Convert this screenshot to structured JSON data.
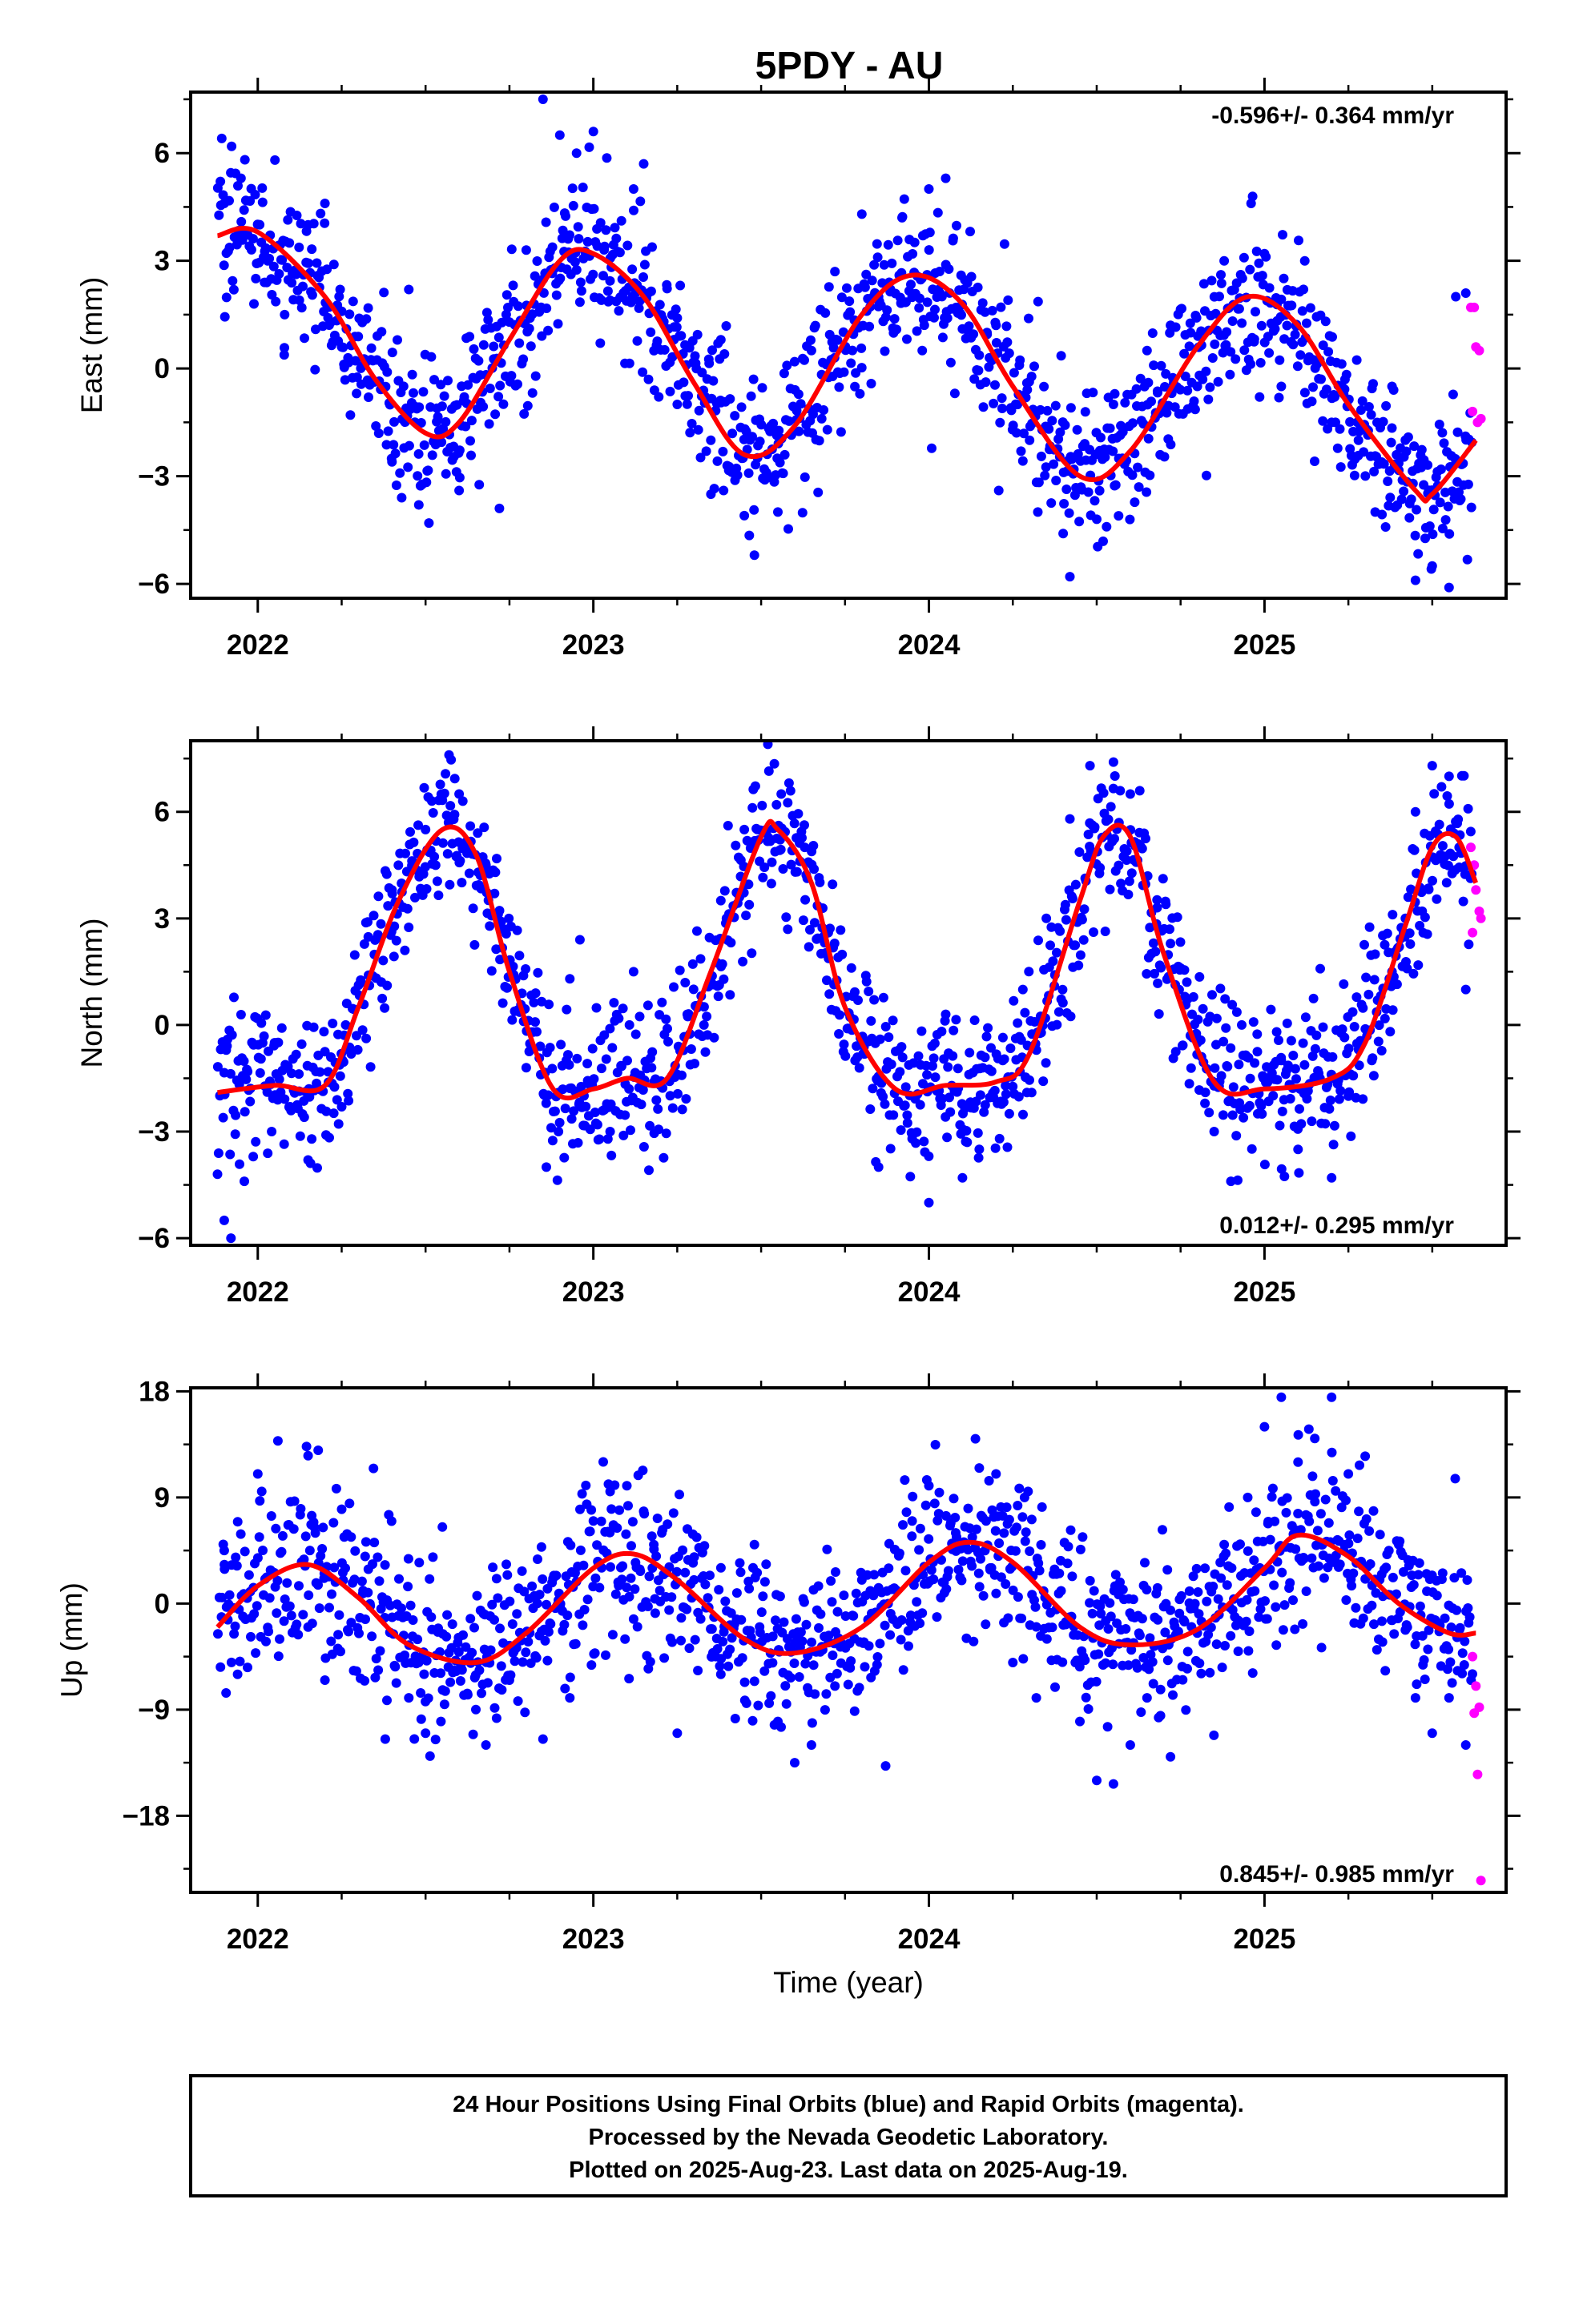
{
  "title": "5PDY - AU",
  "colors": {
    "final": "#0000ff",
    "rapid": "#ff00ff",
    "model": "#ff0000",
    "frame": "#000000"
  },
  "footer": {
    "lines": [
      "24 Hour Positions Using Final Orbits (blue) and Rapid Orbits (magenta).",
      "Processed by the Nevada Geodetic Laboratory.",
      "Plotted on 2025-Aug-23. Last data on 2025-Aug-19."
    ]
  },
  "chart_data": [
    {
      "type": "scatter",
      "component": "East",
      "ylabel": "East (mm)",
      "xlabel": "",
      "xlim": [
        2021.8,
        2025.72
      ],
      "ylim": [
        -6.4,
        7.7
      ],
      "xticks": [
        2022,
        2023,
        2024,
        2025
      ],
      "yticks": [
        -6,
        -3,
        0,
        3,
        6
      ],
      "rate_label": "-0.596+/- 0.364 mm/yr",
      "rate_position": "top-right",
      "data_start": 2021.88,
      "data_end": 2025.63,
      "model": {
        "x": [
          2021.88,
          2022.0,
          2022.2,
          2022.35,
          2022.5,
          2022.6,
          2022.75,
          2022.9,
          2023.0,
          2023.15,
          2023.3,
          2023.45,
          2023.6,
          2023.8,
          2023.95,
          2024.1,
          2024.25,
          2024.45,
          2024.6,
          2024.8,
          2024.95,
          2025.1,
          2025.25,
          2025.45,
          2025.5,
          2025.63
        ],
        "y": [
          3.7,
          3.8,
          2.0,
          -0.3,
          -1.8,
          -1.5,
          0.8,
          3.0,
          3.2,
          2.0,
          -0.4,
          -2.4,
          -1.6,
          1.5,
          2.6,
          1.8,
          -0.5,
          -3.0,
          -2.3,
          0.6,
          2.0,
          1.2,
          -1.0,
          -3.4,
          -3.5,
          -2.0
        ]
      },
      "final_points": [
        {
          "x": 2021.9,
          "y": 4.6
        },
        {
          "x": 2021.95,
          "y": 5.3
        },
        {
          "x": 2022.02,
          "y": 2.4
        },
        {
          "x": 2022.08,
          "y": 1.5
        },
        {
          "x": 2022.15,
          "y": 4.0
        },
        {
          "x": 2022.2,
          "y": 4.6
        },
        {
          "x": 2022.25,
          "y": 0.6
        },
        {
          "x": 2022.33,
          "y": -0.8
        },
        {
          "x": 2022.4,
          "y": -2.6
        },
        {
          "x": 2022.45,
          "y": 2.2
        },
        {
          "x": 2022.48,
          "y": -3.8
        },
        {
          "x": 2022.6,
          "y": -3.4
        },
        {
          "x": 2022.72,
          "y": -3.9
        },
        {
          "x": 2022.8,
          "y": 3.3
        },
        {
          "x": 2022.85,
          "y": 7.5
        },
        {
          "x": 2022.9,
          "y": 6.5
        },
        {
          "x": 2022.95,
          "y": 6.0
        },
        {
          "x": 2023.0,
          "y": 6.6
        },
        {
          "x": 2023.05,
          "y": 1.9
        },
        {
          "x": 2023.12,
          "y": 5.0
        },
        {
          "x": 2023.15,
          "y": 5.7
        },
        {
          "x": 2023.25,
          "y": -1.0
        },
        {
          "x": 2023.35,
          "y": -2.0
        },
        {
          "x": 2023.38,
          "y": 0.8
        },
        {
          "x": 2023.45,
          "y": -4.1
        },
        {
          "x": 2023.48,
          "y": -5.2
        },
        {
          "x": 2023.55,
          "y": -4.0
        },
        {
          "x": 2023.65,
          "y": 0.5
        },
        {
          "x": 2023.72,
          "y": 2.7
        },
        {
          "x": 2023.8,
          "y": 4.3
        },
        {
          "x": 2023.85,
          "y": 2.0
        },
        {
          "x": 2023.92,
          "y": 4.2
        },
        {
          "x": 2023.98,
          "y": 0.5
        },
        {
          "x": 2024.0,
          "y": 5.0
        },
        {
          "x": 2024.05,
          "y": 5.3
        },
        {
          "x": 2024.1,
          "y": 1.1
        },
        {
          "x": 2024.2,
          "y": 1.2
        },
        {
          "x": 2024.3,
          "y": -2.0
        },
        {
          "x": 2024.4,
          "y": -4.6
        },
        {
          "x": 2024.42,
          "y": -5.8
        },
        {
          "x": 2024.5,
          "y": -4.2
        },
        {
          "x": 2024.55,
          "y": -1.0
        },
        {
          "x": 2024.65,
          "y": 0.5
        },
        {
          "x": 2024.72,
          "y": 1.2
        },
        {
          "x": 2024.8,
          "y": -0.5
        },
        {
          "x": 2024.88,
          "y": 3.0
        },
        {
          "x": 2024.96,
          "y": 4.6
        },
        {
          "x": 2025.0,
          "y": 3.2
        },
        {
          "x": 2025.05,
          "y": -0.5
        },
        {
          "x": 2025.12,
          "y": 3.0
        },
        {
          "x": 2025.2,
          "y": -1.5
        },
        {
          "x": 2025.28,
          "y": -2.0
        },
        {
          "x": 2025.33,
          "y": -4.0
        },
        {
          "x": 2025.38,
          "y": -0.5
        },
        {
          "x": 2025.45,
          "y": -5.9
        },
        {
          "x": 2025.5,
          "y": -5.5
        },
        {
          "x": 2025.55,
          "y": -6.1
        },
        {
          "x": 2025.57,
          "y": 2.0
        },
        {
          "x": 2025.6,
          "y": 2.1
        }
      ],
      "rapid_points": [
        {
          "x": 2025.615,
          "y": 1.7
        },
        {
          "x": 2025.625,
          "y": 1.7
        },
        {
          "x": 2025.63,
          "y": 0.6
        },
        {
          "x": 2025.64,
          "y": 0.5
        },
        {
          "x": 2025.62,
          "y": -1.2
        },
        {
          "x": 2025.635,
          "y": -1.5
        },
        {
          "x": 2025.645,
          "y": -1.4
        }
      ]
    },
    {
      "type": "scatter",
      "component": "North",
      "ylabel": "North (mm)",
      "xlabel": "",
      "xlim": [
        2021.8,
        2025.72
      ],
      "ylim": [
        -6.2,
        8.0
      ],
      "xticks": [
        2022,
        2023,
        2024,
        2025
      ],
      "yticks": [
        -6,
        -3,
        0,
        3,
        6
      ],
      "rate_label": "0.012+/- 0.295 mm/yr",
      "rate_position": "bottom-right",
      "data_start": 2021.88,
      "data_end": 2025.63,
      "model": {
        "x": [
          2021.88,
          2022.05,
          2022.2,
          2022.3,
          2022.42,
          2022.55,
          2022.65,
          2022.75,
          2022.88,
          2023.0,
          2023.1,
          2023.22,
          2023.35,
          2023.5,
          2023.55,
          2023.65,
          2023.75,
          2023.9,
          2024.05,
          2024.2,
          2024.3,
          2024.45,
          2024.52,
          2024.6,
          2024.7,
          2024.85,
          2025.0,
          2025.2,
          2025.3,
          2025.42,
          2025.5,
          2025.57,
          2025.63
        ],
        "y": [
          -1.9,
          -1.7,
          -1.7,
          0.5,
          3.5,
          5.5,
          4.8,
          1.5,
          -1.8,
          -1.8,
          -1.5,
          -1.5,
          1.5,
          5.3,
          5.5,
          4.0,
          0.5,
          -1.8,
          -1.7,
          -1.6,
          -0.8,
          3.5,
          5.3,
          5.3,
          2.0,
          -1.6,
          -1.8,
          -1.5,
          -0.5,
          2.8,
          5.0,
          5.3,
          4.0
        ]
      },
      "final_points": [
        {
          "x": 2021.88,
          "y": -4.2
        },
        {
          "x": 2021.9,
          "y": -5.5
        },
        {
          "x": 2021.92,
          "y": -6.0
        },
        {
          "x": 2021.96,
          "y": -4.4
        },
        {
          "x": 2022.05,
          "y": -0.5
        },
        {
          "x": 2022.15,
          "y": -3.8
        },
        {
          "x": 2022.25,
          "y": -2.3
        },
        {
          "x": 2022.33,
          "y": 1.4
        },
        {
          "x": 2022.4,
          "y": 3.8
        },
        {
          "x": 2022.5,
          "y": 5.5
        },
        {
          "x": 2022.57,
          "y": 7.6
        },
        {
          "x": 2022.6,
          "y": 6.5
        },
        {
          "x": 2022.68,
          "y": 4.5
        },
        {
          "x": 2022.73,
          "y": 2.7
        },
        {
          "x": 2022.8,
          "y": -1.2
        },
        {
          "x": 2022.86,
          "y": -4.0
        },
        {
          "x": 2022.93,
          "y": 1.3
        },
        {
          "x": 2022.96,
          "y": 2.4
        },
        {
          "x": 2023.05,
          "y": -3.0
        },
        {
          "x": 2023.12,
          "y": 1.5
        },
        {
          "x": 2023.2,
          "y": -1.7
        },
        {
          "x": 2023.28,
          "y": 0.3
        },
        {
          "x": 2023.38,
          "y": 3.5
        },
        {
          "x": 2023.45,
          "y": 5.5
        },
        {
          "x": 2023.52,
          "y": 7.9
        },
        {
          "x": 2023.56,
          "y": 6.5
        },
        {
          "x": 2023.63,
          "y": 5.0
        },
        {
          "x": 2023.7,
          "y": 2.6
        },
        {
          "x": 2023.78,
          "y": -1.0
        },
        {
          "x": 2023.85,
          "y": -4.0
        },
        {
          "x": 2023.95,
          "y": -3.2
        },
        {
          "x": 2024.0,
          "y": -5.0
        },
        {
          "x": 2024.05,
          "y": 0.3
        },
        {
          "x": 2024.1,
          "y": -4.3
        },
        {
          "x": 2024.15,
          "y": -3.5
        },
        {
          "x": 2024.22,
          "y": -1.0
        },
        {
          "x": 2024.28,
          "y": 1.0
        },
        {
          "x": 2024.35,
          "y": 3.0
        },
        {
          "x": 2024.42,
          "y": 5.8
        },
        {
          "x": 2024.48,
          "y": 7.3
        },
        {
          "x": 2024.55,
          "y": 7.4
        },
        {
          "x": 2024.6,
          "y": 6.5
        },
        {
          "x": 2024.68,
          "y": 3.3
        },
        {
          "x": 2024.75,
          "y": 1.6
        },
        {
          "x": 2024.8,
          "y": -0.5
        },
        {
          "x": 2024.85,
          "y": -3.0
        },
        {
          "x": 2024.9,
          "y": -4.4
        },
        {
          "x": 2024.98,
          "y": -2.5
        },
        {
          "x": 2025.05,
          "y": -1.0
        },
        {
          "x": 2025.1,
          "y": -3.5
        },
        {
          "x": 2025.2,
          "y": -4.3
        },
        {
          "x": 2025.25,
          "y": -2.0
        },
        {
          "x": 2025.32,
          "y": -1.0
        },
        {
          "x": 2025.38,
          "y": 1.5
        },
        {
          "x": 2025.42,
          "y": 3.0
        },
        {
          "x": 2025.45,
          "y": 6.0
        },
        {
          "x": 2025.5,
          "y": 7.3
        },
        {
          "x": 2025.55,
          "y": 7.0
        },
        {
          "x": 2025.58,
          "y": 5.0
        },
        {
          "x": 2025.6,
          "y": 1.0
        }
      ],
      "rapid_points": [
        {
          "x": 2025.615,
          "y": 5.0
        },
        {
          "x": 2025.625,
          "y": 4.5
        },
        {
          "x": 2025.63,
          "y": 3.8
        },
        {
          "x": 2025.64,
          "y": 3.2
        },
        {
          "x": 2025.62,
          "y": 2.6
        },
        {
          "x": 2025.645,
          "y": 3.0
        }
      ]
    },
    {
      "type": "scatter",
      "component": "Up",
      "ylabel": "Up (mm)",
      "xlabel": "Time (year)",
      "xlim": [
        2021.8,
        2025.72
      ],
      "ylim": [
        -24.5,
        18.3
      ],
      "xticks": [
        2022,
        2023,
        2024,
        2025
      ],
      "yticks": [
        -18,
        -9,
        0,
        9,
        18
      ],
      "rate_label": "0.845+/- 0.985 mm/yr",
      "rate_position": "bottom-right",
      "data_start": 2021.88,
      "data_end": 2025.63,
      "model": {
        "x": [
          2021.88,
          2022.0,
          2022.15,
          2022.3,
          2022.45,
          2022.65,
          2022.8,
          2023.0,
          2023.12,
          2023.25,
          2023.45,
          2023.6,
          2023.8,
          2024.0,
          2024.12,
          2024.25,
          2024.45,
          2024.6,
          2024.8,
          2025.0,
          2025.1,
          2025.25,
          2025.4,
          2025.55,
          2025.63
        ],
        "y": [
          -2.0,
          1.5,
          3.3,
          0.5,
          -3.5,
          -5.0,
          -2.5,
          3.0,
          4.2,
          2.0,
          -3.0,
          -4.2,
          -2.0,
          3.5,
          5.2,
          3.5,
          -2.0,
          -3.5,
          -2.2,
          3.0,
          5.8,
          4.0,
          0.0,
          -2.5,
          -2.5
        ]
      },
      "final_points": [
        {
          "x": 2021.9,
          "y": 4.5
        },
        {
          "x": 2021.94,
          "y": -6.0
        },
        {
          "x": 2022.0,
          "y": 11.0
        },
        {
          "x": 2022.06,
          "y": 13.8
        },
        {
          "x": 2022.15,
          "y": -2.0
        },
        {
          "x": 2022.18,
          "y": 13.0
        },
        {
          "x": 2022.2,
          "y": -6.5
        },
        {
          "x": 2022.25,
          "y": 8.0
        },
        {
          "x": 2022.32,
          "y": 4.0
        },
        {
          "x": 2022.38,
          "y": -11.5
        },
        {
          "x": 2022.45,
          "y": -8.0
        },
        {
          "x": 2022.5,
          "y": -11.0
        },
        {
          "x": 2022.55,
          "y": 6.5
        },
        {
          "x": 2022.65,
          "y": -9.0
        },
        {
          "x": 2022.68,
          "y": -12.0
        },
        {
          "x": 2022.75,
          "y": -6.5
        },
        {
          "x": 2022.85,
          "y": -11.5
        },
        {
          "x": 2022.93,
          "y": -8.0
        },
        {
          "x": 2023.0,
          "y": 7.0
        },
        {
          "x": 2023.05,
          "y": 9.5
        },
        {
          "x": 2023.1,
          "y": 10.0
        },
        {
          "x": 2023.18,
          "y": 5.0
        },
        {
          "x": 2023.25,
          "y": -11.0
        },
        {
          "x": 2023.3,
          "y": 2.0
        },
        {
          "x": 2023.38,
          "y": -6.0
        },
        {
          "x": 2023.48,
          "y": 5.0
        },
        {
          "x": 2023.55,
          "y": -10.0
        },
        {
          "x": 2023.6,
          "y": -13.5
        },
        {
          "x": 2023.65,
          "y": -12.0
        },
        {
          "x": 2023.72,
          "y": -7.0
        },
        {
          "x": 2023.8,
          "y": 2.0
        },
        {
          "x": 2023.88,
          "y": 3.0
        },
        {
          "x": 2023.95,
          "y": 7.0
        },
        {
          "x": 2024.0,
          "y": 10.0
        },
        {
          "x": 2024.08,
          "y": 6.0
        },
        {
          "x": 2024.15,
          "y": 11.5
        },
        {
          "x": 2024.2,
          "y": 11.0
        },
        {
          "x": 2024.25,
          "y": -5.0
        },
        {
          "x": 2024.32,
          "y": -8.0
        },
        {
          "x": 2024.38,
          "y": 2.5
        },
        {
          "x": 2024.45,
          "y": -10.0
        },
        {
          "x": 2024.5,
          "y": -15.0
        },
        {
          "x": 2024.55,
          "y": -15.3
        },
        {
          "x": 2024.6,
          "y": -12.0
        },
        {
          "x": 2024.65,
          "y": -8.0
        },
        {
          "x": 2024.72,
          "y": -13.0
        },
        {
          "x": 2024.8,
          "y": -2.5
        },
        {
          "x": 2024.88,
          "y": 5.0
        },
        {
          "x": 2024.95,
          "y": 9.0
        },
        {
          "x": 2025.0,
          "y": 15.0
        },
        {
          "x": 2025.05,
          "y": 17.5
        },
        {
          "x": 2025.1,
          "y": 12.0
        },
        {
          "x": 2025.15,
          "y": 14.0
        },
        {
          "x": 2025.2,
          "y": 17.5
        },
        {
          "x": 2025.25,
          "y": 11.0
        },
        {
          "x": 2025.3,
          "y": 12.5
        },
        {
          "x": 2025.35,
          "y": -1.5
        },
        {
          "x": 2025.4,
          "y": 5.0
        },
        {
          "x": 2025.45,
          "y": -8.0
        },
        {
          "x": 2025.5,
          "y": -11.0
        },
        {
          "x": 2025.55,
          "y": -8.0
        },
        {
          "x": 2025.6,
          "y": -12.0
        }
      ],
      "rapid_points": [
        {
          "x": 2025.62,
          "y": -4.5
        },
        {
          "x": 2025.63,
          "y": -7.0
        },
        {
          "x": 2025.64,
          "y": -8.8
        },
        {
          "x": 2025.625,
          "y": -9.3
        },
        {
          "x": 2025.635,
          "y": -14.5
        },
        {
          "x": 2025.645,
          "y": -23.5
        }
      ]
    }
  ]
}
